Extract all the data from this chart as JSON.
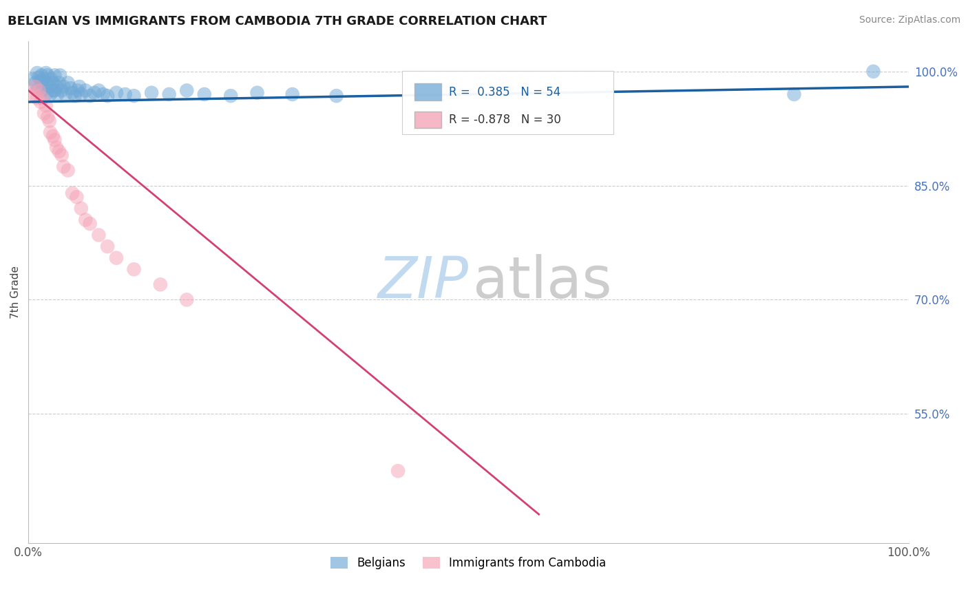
{
  "title": "BELGIAN VS IMMIGRANTS FROM CAMBODIA 7TH GRADE CORRELATION CHART",
  "source_text": "Source: ZipAtlas.com",
  "ylabel": "7th Grade",
  "watermark_zip": "ZIP",
  "watermark_atlas": "atlas",
  "blue_R": 0.385,
  "blue_N": 54,
  "pink_R": -0.878,
  "pink_N": 30,
  "blue_color": "#6fa8d6",
  "blue_line_color": "#1a5fa0",
  "pink_color": "#f4a0b5",
  "pink_line_color": "#d44070",
  "legend_blue_label": "Belgians",
  "legend_pink_label": "Immigrants from Cambodia",
  "ytick_labels": [
    "55.0%",
    "70.0%",
    "85.0%",
    "100.0%"
  ],
  "ytick_values": [
    0.55,
    0.7,
    0.85,
    1.0
  ],
  "ymin": 0.38,
  "ymax": 1.04,
  "xmin": 0.0,
  "xmax": 1.0,
  "blue_scatter_x": [
    0.005,
    0.008,
    0.01,
    0.01,
    0.012,
    0.014,
    0.015,
    0.016,
    0.016,
    0.018,
    0.02,
    0.02,
    0.022,
    0.022,
    0.024,
    0.025,
    0.026,
    0.028,
    0.028,
    0.03,
    0.03,
    0.032,
    0.033,
    0.035,
    0.036,
    0.038,
    0.04,
    0.042,
    0.045,
    0.048,
    0.05,
    0.053,
    0.056,
    0.058,
    0.06,
    0.065,
    0.07,
    0.075,
    0.08,
    0.085,
    0.09,
    0.1,
    0.11,
    0.12,
    0.14,
    0.16,
    0.18,
    0.2,
    0.23,
    0.26,
    0.3,
    0.35,
    0.87,
    0.96
  ],
  "blue_scatter_y": [
    0.99,
    0.985,
    0.998,
    0.975,
    0.992,
    0.988,
    0.995,
    0.975,
    0.985,
    0.99,
    0.998,
    0.97,
    0.985,
    0.995,
    0.98,
    0.97,
    0.99,
    0.975,
    0.985,
    0.995,
    0.975,
    0.98,
    0.97,
    0.985,
    0.995,
    0.975,
    0.98,
    0.97,
    0.985,
    0.978,
    0.972,
    0.968,
    0.975,
    0.98,
    0.97,
    0.975,
    0.968,
    0.972,
    0.975,
    0.97,
    0.968,
    0.972,
    0.97,
    0.968,
    0.972,
    0.97,
    0.975,
    0.97,
    0.968,
    0.972,
    0.97,
    0.968,
    0.97,
    1.0
  ],
  "pink_scatter_x": [
    0.005,
    0.008,
    0.01,
    0.012,
    0.014,
    0.016,
    0.018,
    0.02,
    0.022,
    0.024,
    0.025,
    0.028,
    0.03,
    0.032,
    0.035,
    0.038,
    0.04,
    0.045,
    0.05,
    0.055,
    0.06,
    0.065,
    0.07,
    0.08,
    0.09,
    0.1,
    0.12,
    0.15,
    0.18,
    0.42
  ],
  "pink_scatter_y": [
    0.97,
    0.98,
    0.965,
    0.975,
    0.96,
    0.965,
    0.945,
    0.955,
    0.94,
    0.935,
    0.92,
    0.915,
    0.91,
    0.9,
    0.895,
    0.89,
    0.875,
    0.87,
    0.84,
    0.835,
    0.82,
    0.805,
    0.8,
    0.785,
    0.77,
    0.755,
    0.74,
    0.72,
    0.7,
    0.475
  ],
  "blue_line_x0": 0.0,
  "blue_line_x1": 1.0,
  "blue_line_y0": 0.96,
  "blue_line_y1": 0.98,
  "pink_line_x0": 0.0,
  "pink_line_x1": 0.58,
  "pink_line_y0": 0.975,
  "pink_line_y1": 0.418
}
